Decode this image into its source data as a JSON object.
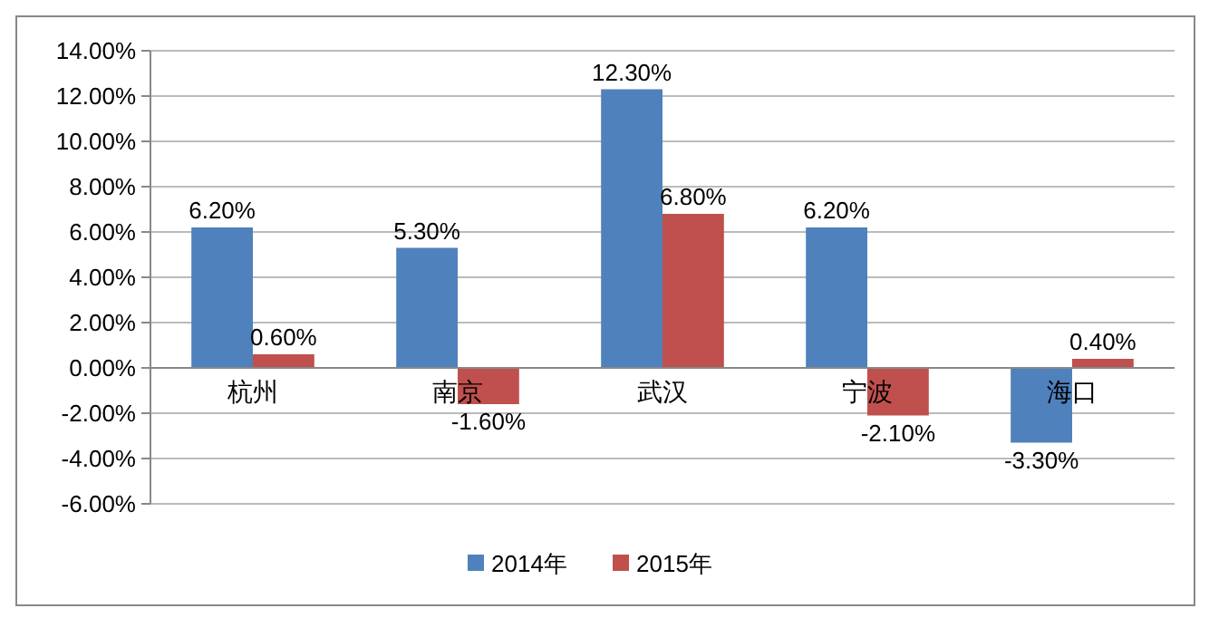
{
  "chart_data": {
    "type": "bar",
    "categories": [
      "杭州",
      "南京",
      "武汉",
      "宁波",
      "海口"
    ],
    "series": [
      {
        "name": "2014年",
        "color": "#4f81bd",
        "values": [
          6.2,
          5.3,
          12.3,
          6.2,
          -3.3
        ],
        "value_labels": [
          "6.20%",
          "5.30%",
          "12.30%",
          "6.20%",
          "-3.30%"
        ]
      },
      {
        "name": "2015年",
        "color": "#c0504d",
        "values": [
          0.6,
          -1.6,
          6.8,
          -2.1,
          0.4
        ],
        "value_labels": [
          "0.60%",
          "-1.60%",
          "6.80%",
          "-2.10%",
          "0.40%"
        ]
      }
    ],
    "ylim": [
      -6,
      14
    ],
    "yticks": [
      {
        "value": -6,
        "label": "-6.00%"
      },
      {
        "value": -4,
        "label": "-4.00%"
      },
      {
        "value": -2,
        "label": "-2.00%"
      },
      {
        "value": 0,
        "label": "0.00%"
      },
      {
        "value": 2,
        "label": "2.00%"
      },
      {
        "value": 4,
        "label": "4.00%"
      },
      {
        "value": 6,
        "label": "6.00%"
      },
      {
        "value": 8,
        "label": "8.00%"
      },
      {
        "value": 10,
        "label": "10.00%"
      },
      {
        "value": 12,
        "label": "12.00%"
      },
      {
        "value": 14,
        "label": "14.00%"
      }
    ],
    "grid": "y",
    "legend": "bottom"
  }
}
